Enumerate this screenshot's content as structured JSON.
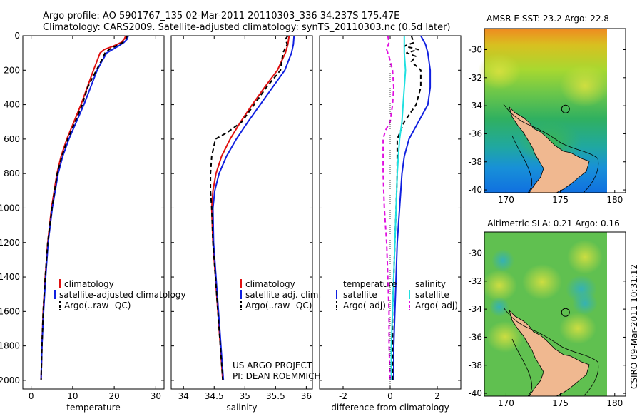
{
  "header": {
    "line1": "Argo profile: AO 5901767_135 02-Mar-2011 20110303_336 34.237S 175.47E",
    "line2": "Climatology: CARS2009. Satellite-adjusted climatology: synTS_20110303.nc (0.5d later)"
  },
  "credit": {
    "line1": "US ARGO PROJECT",
    "line2": "PI: DEAN ROEMMICH"
  },
  "side_stamp": "CSIRO 09-Mar-2011 10:31:12",
  "colors": {
    "climatology": "#e01010",
    "satellite": "#1020e0",
    "argo": "#000000",
    "salinity_satellite": "#20e0e0",
    "salinity_argo": "#e010e0",
    "land": "#f0b890"
  },
  "chart_data": [
    {
      "type": "line",
      "id": "temperature",
      "xlabel": "temperature",
      "xlim": [
        -2,
        32
      ],
      "ylim": [
        0,
        2050
      ],
      "y_reversed": true,
      "xticks": [
        0,
        10,
        20,
        30
      ],
      "xtick_labels": [
        "0",
        "10",
        "20",
        "30"
      ],
      "yticks": [
        0,
        200,
        400,
        600,
        800,
        1000,
        1200,
        1400,
        1600,
        1800,
        2000
      ],
      "ytick_labels": [
        "0",
        "200",
        "400",
        "600",
        "800",
        "1000",
        "1200",
        "1400",
        "1600",
        "1800",
        "2000"
      ],
      "legend": [
        "climatology",
        "satellite-adjusted climatology",
        "Argo(..raw -QC)"
      ],
      "series": [
        {
          "name": "climatology",
          "color": "#e01010",
          "dash": "solid",
          "depth": [
            0,
            20,
            40,
            60,
            80,
            100,
            150,
            200,
            300,
            400,
            500,
            600,
            700,
            800,
            1000,
            1200,
            1400,
            1600,
            1800,
            2000
          ],
          "values": [
            22.8,
            22.4,
            21.6,
            19.8,
            17.6,
            16.6,
            15.8,
            15.0,
            13.5,
            12.0,
            10.3,
            8.6,
            7.2,
            6.2,
            4.9,
            4.0,
            3.4,
            2.9,
            2.6,
            2.4
          ]
        },
        {
          "name": "satellite-adjusted climatology",
          "color": "#1020e0",
          "dash": "solid",
          "depth": [
            0,
            20,
            40,
            60,
            80,
            100,
            150,
            200,
            300,
            400,
            500,
            600,
            700,
            800,
            1000,
            1200,
            1400,
            1600,
            1800,
            2000
          ],
          "values": [
            23.4,
            23.1,
            22.3,
            21.0,
            19.6,
            18.2,
            17.0,
            15.9,
            14.3,
            12.7,
            10.9,
            9.1,
            7.6,
            6.5,
            5.1,
            4.1,
            3.5,
            3.0,
            2.6,
            2.4
          ]
        },
        {
          "name": "Argo(..raw -QC)",
          "color": "#000000",
          "dash": "6,4",
          "depth": [
            0,
            20,
            40,
            60,
            80,
            100,
            150,
            200,
            300,
            400,
            500,
            600,
            700,
            800,
            1000,
            1200,
            1400,
            1600,
            1800,
            2000
          ],
          "values": [
            23.1,
            22.8,
            22.0,
            20.4,
            18.8,
            17.8,
            16.8,
            15.7,
            13.6,
            12.3,
            10.6,
            8.8,
            7.4,
            6.3,
            5.0,
            4.0,
            3.4,
            2.9,
            2.6,
            2.4
          ]
        }
      ]
    },
    {
      "type": "line",
      "id": "salinity",
      "xlabel": "salinity",
      "xlim": [
        33.8,
        36.1
      ],
      "ylim": [
        0,
        2050
      ],
      "y_reversed": true,
      "xticks": [
        34,
        34.5,
        35,
        35.5,
        36
      ],
      "xtick_labels": [
        "34",
        "34.5",
        "35",
        "35.5",
        "36"
      ],
      "legend": [
        "climatology",
        "satellite adj. clim.",
        "Argo(..raw -QC)"
      ],
      "series": [
        {
          "name": "climatology",
          "color": "#e01010",
          "dash": "solid",
          "depth": [
            0,
            50,
            100,
            200,
            300,
            400,
            500,
            600,
            700,
            800,
            900,
            1000,
            1200,
            1400,
            1600,
            1800,
            2000
          ],
          "values": [
            35.72,
            35.7,
            35.66,
            35.53,
            35.32,
            35.12,
            34.93,
            34.76,
            34.62,
            34.53,
            34.48,
            34.46,
            34.48,
            34.52,
            34.56,
            34.6,
            34.64
          ]
        },
        {
          "name": "satellite adj. clim.",
          "color": "#1020e0",
          "dash": "solid",
          "depth": [
            0,
            50,
            100,
            200,
            300,
            400,
            500,
            600,
            700,
            800,
            900,
            1000,
            1200,
            1400,
            1600,
            1800,
            2000
          ],
          "values": [
            35.8,
            35.79,
            35.76,
            35.65,
            35.45,
            35.25,
            35.05,
            34.86,
            34.7,
            34.58,
            34.51,
            34.48,
            34.49,
            34.53,
            34.57,
            34.61,
            34.65
          ]
        },
        {
          "name": "Argo(..raw -QC)",
          "color": "#000000",
          "dash": "6,4",
          "depth": [
            0,
            20,
            50,
            100,
            200,
            300,
            400,
            500,
            560,
            600,
            700,
            800,
            900,
            1000,
            1200,
            1400,
            1600,
            1800,
            2000
          ],
          "values": [
            35.7,
            35.66,
            35.69,
            35.62,
            35.58,
            35.35,
            35.15,
            34.95,
            34.72,
            34.52,
            34.46,
            34.44,
            34.44,
            34.46,
            34.48,
            34.52,
            34.56,
            34.6,
            34.64
          ]
        }
      ]
    },
    {
      "type": "line",
      "id": "difference",
      "xlabel": "difference from climatology",
      "xlim": [
        -3,
        3
      ],
      "ylim": [
        0,
        2050
      ],
      "y_reversed": true,
      "xticks": [
        -2,
        0,
        2
      ],
      "xtick_labels": [
        "-2",
        "0",
        "2"
      ],
      "legend_groups": [
        {
          "title": "temperature",
          "entries": [
            "satellite",
            "Argo(-adj)"
          ]
        },
        {
          "title": "salinity",
          "entries": [
            "satellite",
            "Argo(-adj)"
          ]
        }
      ],
      "series": [
        {
          "name": "temperature satellite",
          "color": "#1020e0",
          "dash": "solid",
          "depth": [
            0,
            50,
            100,
            200,
            300,
            400,
            500,
            600,
            700,
            800,
            1000,
            1200,
            1400,
            1600,
            1800,
            2000
          ],
          "values": [
            1.3,
            1.5,
            1.6,
            1.7,
            1.7,
            1.6,
            1.2,
            0.8,
            0.6,
            0.5,
            0.4,
            0.3,
            0.25,
            0.2,
            0.15,
            0.15
          ]
        },
        {
          "name": "temperature Argo(-adj)",
          "color": "#000000",
          "dash": "6,4",
          "depth": [
            0,
            40,
            60,
            80,
            100,
            120,
            150,
            200,
            300,
            400,
            500,
            600,
            700,
            800,
            1000,
            1200,
            1400,
            1600,
            1800,
            2000
          ],
          "values": [
            0.9,
            1.0,
            0.6,
            1.2,
            0.7,
            1.1,
            0.9,
            1.3,
            1.3,
            1.1,
            0.6,
            0.3,
            0.3,
            0.3,
            0.25,
            0.2,
            0.15,
            0.1,
            0.1,
            0.1
          ]
        },
        {
          "name": "salinity satellite",
          "color": "#20e0e0",
          "dash": "solid",
          "depth": [
            0,
            50,
            100,
            200,
            300,
            400,
            500,
            600,
            700,
            800,
            1000,
            1200,
            1400,
            1600,
            1800,
            2000
          ],
          "values": [
            0.6,
            0.6,
            0.6,
            0.65,
            0.6,
            0.55,
            0.5,
            0.4,
            0.35,
            0.3,
            0.25,
            0.2,
            0.15,
            0.1,
            0.05,
            0.05
          ]
        },
        {
          "name": "salinity Argo(-adj)",
          "color": "#e010e0",
          "dash": "6,4",
          "depth": [
            0,
            40,
            80,
            120,
            200,
            300,
            400,
            500,
            550,
            600,
            700,
            800,
            1000,
            1200,
            1400,
            1600,
            1800,
            2000
          ],
          "values": [
            -0.1,
            -0.05,
            -0.15,
            -0.05,
            0.1,
            0.15,
            0.1,
            0.0,
            -0.2,
            -0.3,
            -0.3,
            -0.3,
            -0.25,
            -0.15,
            -0.1,
            -0.05,
            -0.05,
            0.0
          ]
        }
      ]
    },
    {
      "type": "heatmap",
      "id": "sst-map",
      "title": "AMSR-E SST: 23.2 Argo: 22.8",
      "xlim": [
        168,
        181
      ],
      "ylim": [
        -40.2,
        -28.5
      ],
      "xticks": [
        170,
        175,
        180
      ],
      "xtick_labels": [
        "170",
        "175",
        "180"
      ],
      "yticks": [
        -30,
        -32,
        -34,
        -36,
        -38,
        -40
      ],
      "ytick_labels": [
        "-30",
        "-32",
        "-34",
        "-36",
        "-38",
        "-40"
      ],
      "float_position": [
        175.47,
        -34.237
      ]
    },
    {
      "type": "heatmap",
      "id": "sla-map",
      "title": "Altimetric SLA: 0.21 Argo: 0.16",
      "xlim": [
        168,
        181
      ],
      "ylim": [
        -40.2,
        -28.5
      ],
      "xticks": [
        170,
        175,
        180
      ],
      "xtick_labels": [
        "170",
        "175",
        "180"
      ],
      "yticks": [
        -30,
        -32,
        -34,
        -36,
        -38,
        -40
      ],
      "ytick_labels": [
        "-30",
        "-32",
        "-34",
        "-36",
        "-38",
        "-40"
      ],
      "float_position": [
        175.47,
        -34.237
      ]
    }
  ]
}
